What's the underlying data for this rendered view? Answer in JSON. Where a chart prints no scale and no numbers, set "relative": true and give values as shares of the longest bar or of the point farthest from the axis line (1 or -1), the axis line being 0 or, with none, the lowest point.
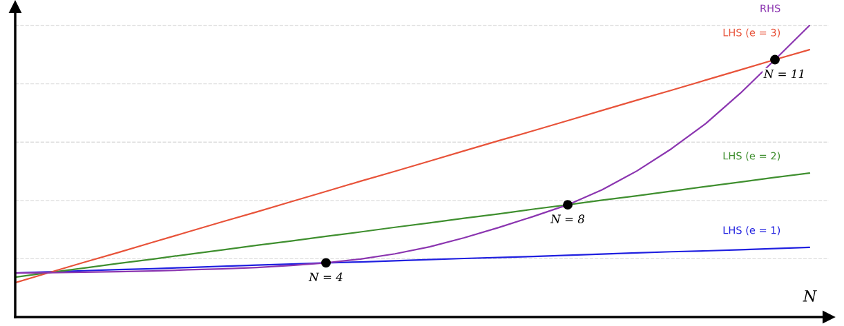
{
  "chart_data": {
    "type": "line",
    "relative": true,
    "xlabel": "N",
    "grid": "y",
    "marker": "none",
    "line_style": "solid",
    "categories": [
      null,
      null,
      null,
      null,
      null,
      null,
      null,
      null,
      null,
      null,
      null,
      null,
      null,
      null,
      null,
      null,
      null,
      null,
      null,
      null,
      null,
      null,
      null,
      null
    ],
    "series": [
      {
        "name": "LHS (e = 1)",
        "color": "#1f1fe0",
        "values": [
          0.151,
          0.155,
          0.159,
          0.163,
          0.166,
          0.17,
          0.174,
          0.178,
          0.182,
          0.186,
          0.189,
          0.193,
          0.197,
          0.201,
          0.204,
          0.208,
          0.212,
          0.216,
          0.22,
          0.224,
          0.227,
          0.231,
          0.235,
          0.239
        ]
      },
      {
        "name": "LHS (e = 2)",
        "color": "#3f8f2f",
        "values": [
          0.137,
          0.153,
          0.168,
          0.184,
          0.199,
          0.215,
          0.23,
          0.246,
          0.261,
          0.277,
          0.292,
          0.308,
          0.323,
          0.339,
          0.354,
          0.37,
          0.385,
          0.401,
          0.416,
          0.432,
          0.448,
          0.463,
          0.479,
          0.494
        ]
      },
      {
        "name": "LHS (e = 3)",
        "color": "#e8533a",
        "values": [
          0.118,
          0.153,
          0.188,
          0.222,
          0.257,
          0.292,
          0.327,
          0.361,
          0.396,
          0.431,
          0.466,
          0.5,
          0.535,
          0.57,
          0.605,
          0.639,
          0.674,
          0.709,
          0.744,
          0.778,
          0.813,
          0.848,
          0.883,
          0.917
        ]
      },
      {
        "name": "RHS",
        "color": "#8b35b0",
        "values": [
          0.151,
          0.152,
          0.154,
          0.156,
          0.158,
          0.162,
          0.165,
          0.17,
          0.177,
          0.186,
          0.199,
          0.217,
          0.241,
          0.272,
          0.307,
          0.345,
          0.385,
          0.437,
          0.501,
          0.577,
          0.664,
          0.768,
          0.883,
          1.0
        ]
      }
    ],
    "annotations": [
      {
        "text": "N = 4",
        "y": 0.186
      },
      {
        "text": "N = 8",
        "y": 0.385
      },
      {
        "text": "N = 11",
        "y": 0.883
      }
    ]
  }
}
